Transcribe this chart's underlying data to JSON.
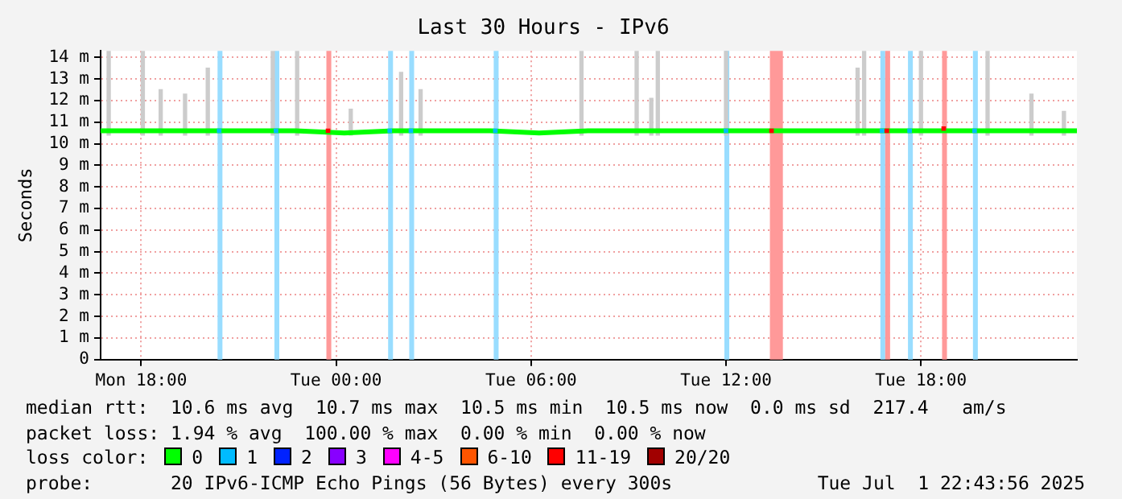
{
  "chart_data": {
    "type": "line",
    "title": "Last 30 Hours - IPv6",
    "ylabel": "Seconds",
    "legend_title": "loss color:",
    "xlim": [
      "2025-06-30T16:45",
      "2025-07-01T22:48"
    ],
    "xticks": [
      {
        "value": "2025-06-30T18:00",
        "label": "Mon 18:00"
      },
      {
        "value": "2025-07-01T00:00",
        "label": "Tue 00:00"
      },
      {
        "value": "2025-07-01T06:00",
        "label": "Tue 06:00"
      },
      {
        "value": "2025-07-01T12:00",
        "label": "Tue 12:00"
      },
      {
        "value": "2025-07-01T18:00",
        "label": "Tue 18:00"
      }
    ],
    "ylim": [
      0,
      14.3
    ],
    "yticks": [
      0,
      {
        "value": 1,
        "label": "1 m"
      },
      {
        "value": 2,
        "label": "2 m"
      },
      {
        "value": 3,
        "label": "3 m"
      },
      {
        "value": 4,
        "label": "4 m"
      },
      {
        "value": 5,
        "label": "5 m"
      },
      {
        "value": 6,
        "label": "6 m"
      },
      {
        "value": 7,
        "label": "7 m"
      },
      {
        "value": 8,
        "label": "8 m"
      },
      {
        "value": 9,
        "label": "9 m"
      },
      {
        "value": 10,
        "label": "10 m"
      },
      {
        "value": 11,
        "label": "11 m"
      },
      {
        "value": 12,
        "label": "12 m"
      },
      {
        "value": 13,
        "label": "13 m"
      },
      {
        "value": 14,
        "label": "14 m"
      }
    ],
    "grid": true,
    "legend": "bottom",
    "series": [
      {
        "type": "bar",
        "color": "#cccccc",
        "x": [
          "2025-06-30T17:00",
          "2025-06-30T18:03",
          "2025-06-30T18:36",
          "2025-06-30T19:21",
          "2025-06-30T20:03",
          "2025-06-30T22:03",
          "2025-06-30T22:48",
          "2025-07-01T00:27",
          "2025-07-01T02:00",
          "2025-07-01T02:36",
          "2025-07-01T07:33",
          "2025-07-01T09:15",
          "2025-07-01T09:42",
          "2025-07-01T09:54",
          "2025-07-01T12:00",
          "2025-07-01T16:03",
          "2025-07-01T16:15",
          "2025-07-01T18:00",
          "2025-07-01T20:03",
          "2025-07-01T21:24",
          "2025-07-01T22:24"
        ],
        "base": [
          10.4,
          10.4,
          10.4,
          10.4,
          10.4,
          10.4,
          10.4,
          10.4,
          10.4,
          10.4,
          10.4,
          10.4,
          10.4,
          10.4,
          10.4,
          10.4,
          10.4,
          10.4,
          10.4,
          10.4,
          10.4
        ],
        "values": [
          3.9,
          3.9,
          2.1,
          1.9,
          3.1,
          3.9,
          3.9,
          1.2,
          2.9,
          2.1,
          3.9,
          3.9,
          1.7,
          3.9,
          3.9,
          3.1,
          3.9,
          3.9,
          3.9,
          1.9,
          1.1
        ]
      },
      {
        "name": "0",
        "color": "#00ff00",
        "x": [
          "2025-06-30T16:45",
          "2025-06-30T18:15",
          "2025-06-30T19:45",
          "2025-06-30T21:15",
          "2025-06-30T22:45",
          "2025-07-01T00:15",
          "2025-07-01T01:45",
          "2025-07-01T03:15",
          "2025-07-01T04:45",
          "2025-07-01T06:15",
          "2025-07-01T07:45",
          "2025-07-01T09:15",
          "2025-07-01T10:45",
          "2025-07-01T12:15",
          "2025-07-01T13:45",
          "2025-07-01T15:15",
          "2025-07-01T16:45",
          "2025-07-01T18:15",
          "2025-07-01T19:45",
          "2025-07-01T21:15",
          "2025-07-01T22:48"
        ],
        "values": [
          10.6,
          10.6,
          10.6,
          10.6,
          10.6,
          10.5,
          10.6,
          10.6,
          10.6,
          10.5,
          10.6,
          10.6,
          10.6,
          10.6,
          10.6,
          10.6,
          10.6,
          10.6,
          10.6,
          10.6,
          10.6
        ]
      },
      {
        "name": "1",
        "type": "scatter",
        "color": "#00bbff",
        "x": [
          "2025-06-30T20:24",
          "2025-06-30T22:09",
          "2025-07-01T01:39",
          "2025-07-01T02:18",
          "2025-07-01T04:54",
          "2025-07-01T12:00",
          "2025-07-01T16:48",
          "2025-07-01T17:39",
          "2025-07-01T19:39"
        ],
        "values": [
          10.6,
          10.6,
          10.6,
          10.6,
          10.6,
          10.6,
          10.6,
          10.6,
          10.6
        ]
      },
      {
        "name": "2",
        "type": "scatter",
        "color": "#0022ff"
      },
      {
        "name": "3",
        "type": "scatter",
        "color": "#8800ff"
      },
      {
        "name": "4-5",
        "type": "scatter",
        "color": "#ff00ff"
      },
      {
        "name": "6-10",
        "type": "scatter",
        "color": "#ff5500"
      },
      {
        "name": "11-19",
        "type": "scatter",
        "color": "#ff0000",
        "x": [
          "2025-06-30T23:45",
          "2025-07-01T13:24",
          "2025-07-01T16:57",
          "2025-07-01T18:42"
        ],
        "values": [
          10.6,
          10.6,
          10.6,
          10.7
        ]
      },
      {
        "name": "20/20",
        "type": "scatter",
        "color": "#a10000"
      }
    ],
    "bands": [
      {
        "axis": "x",
        "from": "2025-06-30T20:21",
        "to": "2025-06-30T20:30",
        "color": "#99ddff"
      },
      {
        "axis": "x",
        "from": "2025-06-30T22:06",
        "to": "2025-06-30T22:15",
        "color": "#99ddff"
      },
      {
        "axis": "x",
        "from": "2025-06-30T23:42",
        "to": "2025-06-30T23:51",
        "color": "#ff9999"
      },
      {
        "axis": "x",
        "from": "2025-07-01T01:36",
        "to": "2025-07-01T01:45",
        "color": "#99ddff"
      },
      {
        "axis": "x",
        "from": "2025-07-01T02:15",
        "to": "2025-07-01T02:24",
        "color": "#99ddff"
      },
      {
        "axis": "x",
        "from": "2025-07-01T04:51",
        "to": "2025-07-01T05:00",
        "color": "#99ddff"
      },
      {
        "axis": "x",
        "from": "2025-07-01T11:57",
        "to": "2025-07-01T12:06",
        "color": "#99ddff"
      },
      {
        "axis": "x",
        "from": "2025-07-01T13:21",
        "to": "2025-07-01T13:45",
        "color": "#ff9999"
      },
      {
        "axis": "x",
        "from": "2025-07-01T16:45",
        "to": "2025-07-01T16:54",
        "color": "#99ddff"
      },
      {
        "axis": "x",
        "from": "2025-07-01T16:54",
        "to": "2025-07-01T17:03",
        "color": "#ff9999"
      },
      {
        "axis": "x",
        "from": "2025-07-01T17:36",
        "to": "2025-07-01T17:45",
        "color": "#99ddff"
      },
      {
        "axis": "x",
        "from": "2025-07-01T18:39",
        "to": "2025-07-01T18:48",
        "color": "#ff9999"
      },
      {
        "axis": "x",
        "from": "2025-07-01T19:36",
        "to": "2025-07-01T19:45",
        "color": "#99ddff"
      }
    ],
    "annotations": [
      "median rtt:  10.6 ms avg  10.7 ms max  10.5 ms min  10.5 ms now  0.0 ms sd  217.4   am/s",
      "packet loss: 1.94 % avg  100.00 % max  0.00 % min  0.00 % now",
      "probe:       20 IPv6-ICMP Echo Pings (56 Bytes) every 300s",
      "Tue Jul  1 22:43:56 2025"
    ]
  }
}
